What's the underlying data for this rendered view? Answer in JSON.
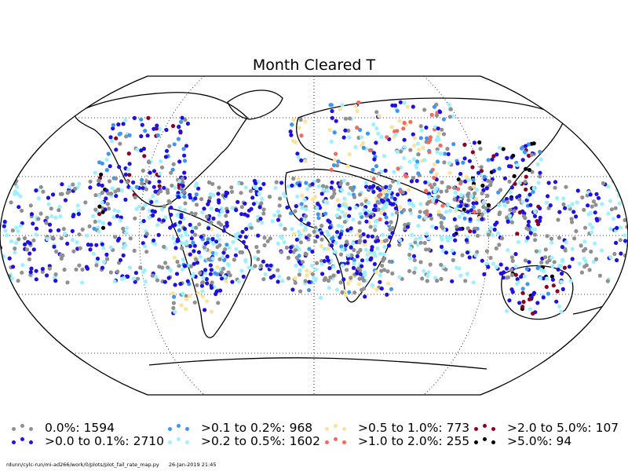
{
  "title": "Month Cleared T",
  "legend": [
    {
      "label": "0.0%: 1594",
      "color": "#909090"
    },
    {
      "label": ">0.0 to 0.1%: 2710",
      "color": "#1f0fe0"
    },
    {
      "label": ">0.1 to 0.2%: 968",
      "color": "#3c96f5"
    },
    {
      "label": ">0.2 to 0.5%: 1602",
      "color": "#9ff0ff"
    },
    {
      "label": ">0.5 to 1.0%: 773",
      "color": "#fde29b"
    },
    {
      "label": ">1.0 to 2.0%: 255",
      "color": "#f56a5e"
    },
    {
      "label": ">2.0 to 5.0%: 107",
      "color": "#8c0024"
    },
    {
      "label": ">5.0%: 94",
      "color": "#000000"
    }
  ],
  "footer": {
    "path": "rdunn/cylc-run/mi-ad266/work/0/plots/plot_fail_rate_map.py",
    "timestamp": "26-Jan-2019 21:45"
  }
}
